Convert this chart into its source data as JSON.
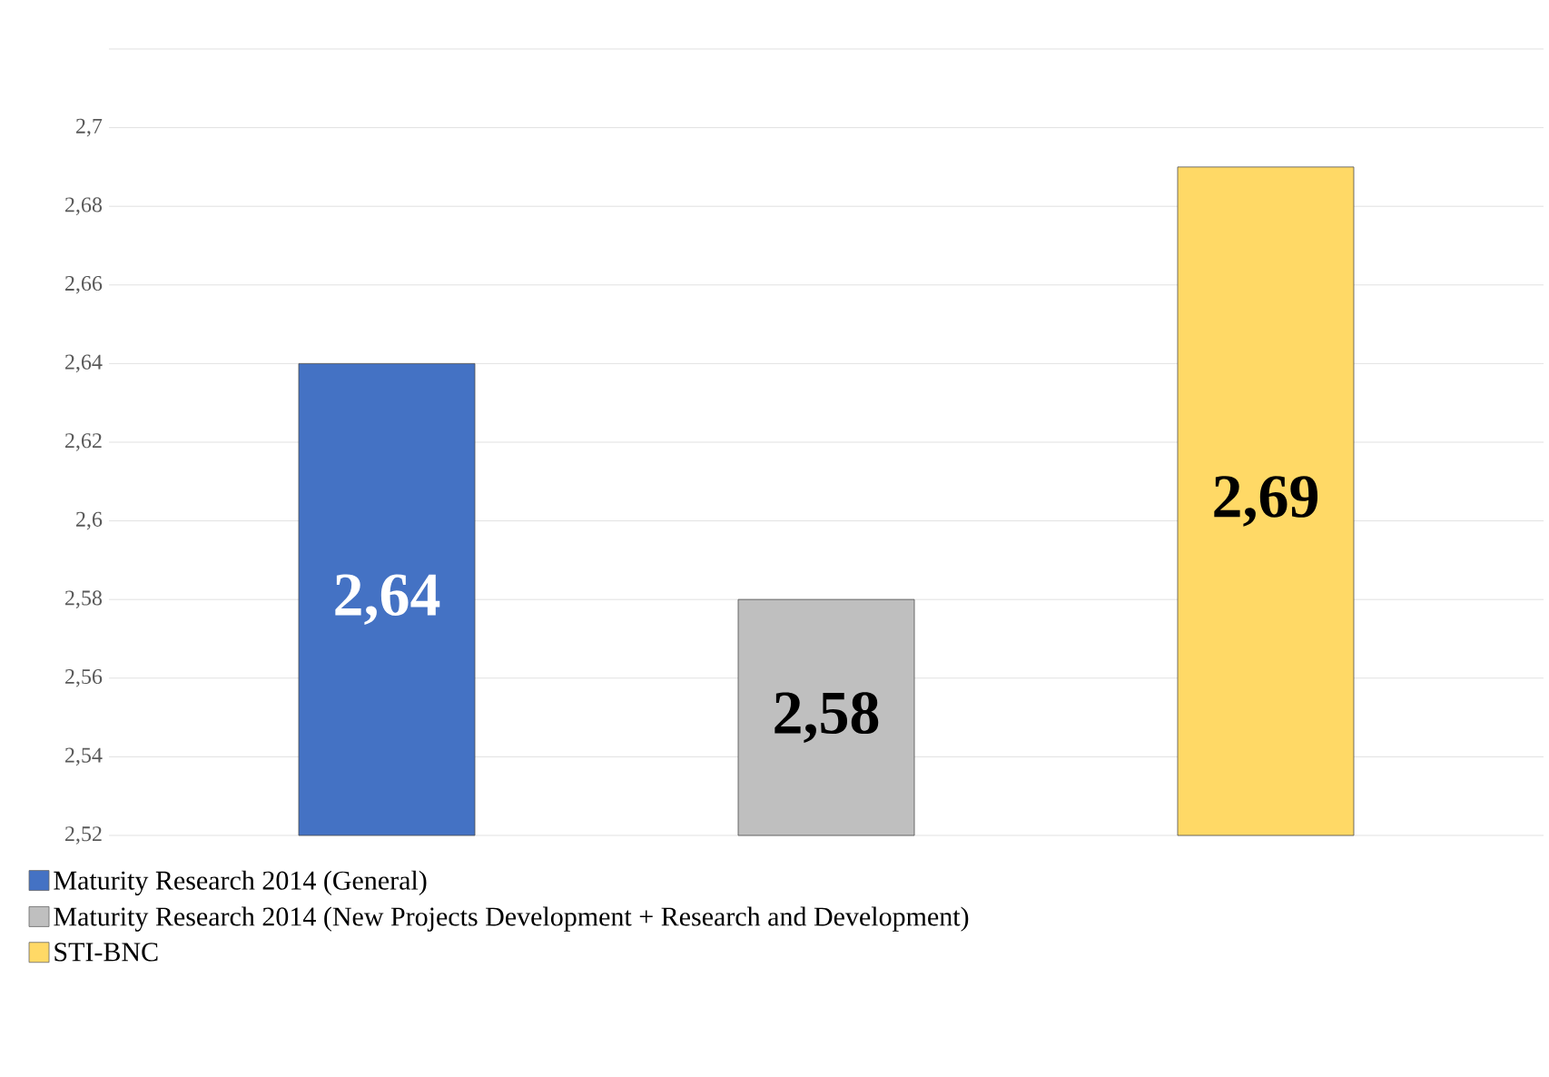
{
  "chart_data": {
    "type": "bar",
    "categories": [
      null
    ],
    "series": [
      {
        "name": "Maturity Research 2014 (General)",
        "color": "#4472c4",
        "values": [
          2.64
        ],
        "value_labels": [
          "2,64"
        ]
      },
      {
        "name": "Maturity Research 2014 (New Projects Development + Research and Development)",
        "color": "#bfbfbf",
        "values": [
          2.58
        ],
        "value_labels": [
          "2,58"
        ]
      },
      {
        "name": "STI-BNC",
        "color": "#ffd966",
        "values": [
          2.69
        ],
        "value_labels": [
          "2,69"
        ]
      }
    ],
    "ylim": [
      2.52,
      2.72
    ],
    "yticks": [
      {
        "value": 2.52,
        "label": "2,52"
      },
      {
        "value": 2.54,
        "label": "2,54"
      },
      {
        "value": 2.56,
        "label": "2,56"
      },
      {
        "value": 2.58,
        "label": "2,58"
      },
      {
        "value": 2.6,
        "label": "2,6"
      },
      {
        "value": 2.62,
        "label": "2,62"
      },
      {
        "value": 2.64,
        "label": "2,64"
      },
      {
        "value": 2.66,
        "label": "2,66"
      },
      {
        "value": 2.68,
        "label": "2,68"
      },
      {
        "value": 2.7,
        "label": "2,7"
      },
      {
        "value": 2.72,
        "label": null
      }
    ],
    "grid": "y",
    "legend": "bottom"
  }
}
